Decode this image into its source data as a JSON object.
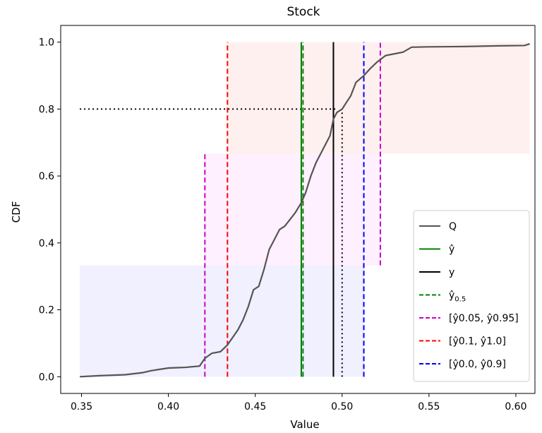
{
  "chart_data": {
    "type": "line",
    "title": "Stock",
    "xlabel": "Value",
    "ylabel": "CDF",
    "xlim": [
      0.338,
      0.611
    ],
    "ylim": [
      -0.05,
      1.05
    ],
    "xticks": [
      "0.35",
      "0.40",
      "0.45",
      "0.50",
      "0.55",
      "0.60"
    ],
    "xtick_values": [
      0.35,
      0.4,
      0.45,
      0.5,
      0.55,
      0.6
    ],
    "yticks": [
      "0.0",
      "0.2",
      "0.4",
      "0.6",
      "0.8",
      "1.0"
    ],
    "ytick_values": [
      0.0,
      0.2,
      0.4,
      0.6,
      0.8,
      1.0
    ],
    "grid": false,
    "legend_position": "lower right",
    "shaded_regions": [
      {
        "x": [
          0.349,
          0.5125
        ],
        "y": [
          0.0,
          0.333
        ],
        "color": "#0000ff",
        "opacity": 0.06
      },
      {
        "x": [
          0.421,
          0.522
        ],
        "y": [
          0.333,
          0.667
        ],
        "color": "#ff00ff",
        "opacity": 0.06
      },
      {
        "x": [
          0.434,
          0.608
        ],
        "y": [
          0.667,
          1.0
        ],
        "color": "#ff0000",
        "opacity": 0.06
      }
    ],
    "cdf_curve": {
      "name": "Q",
      "color": "#555555",
      "x": [
        0.349,
        0.36,
        0.375,
        0.385,
        0.39,
        0.395,
        0.4,
        0.41,
        0.418,
        0.421,
        0.425,
        0.43,
        0.434,
        0.436,
        0.44,
        0.443,
        0.446,
        0.449,
        0.452,
        0.455,
        0.458,
        0.461,
        0.464,
        0.467,
        0.47,
        0.473,
        0.4765,
        0.479,
        0.482,
        0.485,
        0.488,
        0.491,
        0.493,
        0.495,
        0.497,
        0.5,
        0.5025,
        0.505,
        0.508,
        0.5125,
        0.516,
        0.52,
        0.525,
        0.53,
        0.535,
        0.54,
        0.55,
        0.57,
        0.59,
        0.605,
        0.608
      ],
      "y": [
        0.0,
        0.003,
        0.006,
        0.012,
        0.018,
        0.022,
        0.026,
        0.028,
        0.032,
        0.055,
        0.07,
        0.075,
        0.095,
        0.11,
        0.14,
        0.17,
        0.21,
        0.26,
        0.27,
        0.32,
        0.38,
        0.41,
        0.44,
        0.45,
        0.47,
        0.49,
        0.52,
        0.55,
        0.6,
        0.64,
        0.67,
        0.7,
        0.72,
        0.77,
        0.79,
        0.8,
        0.82,
        0.84,
        0.88,
        0.9,
        0.92,
        0.94,
        0.96,
        0.965,
        0.97,
        0.985,
        0.986,
        0.987,
        0.989,
        0.99,
        0.995
      ]
    },
    "vertical_lines": [
      {
        "name": "ŷ",
        "x": 0.4765,
        "color": "#008000",
        "style": "solid"
      },
      {
        "name": "y",
        "x": 0.495,
        "color": "#000000",
        "style": "solid"
      },
      {
        "name": "ŷ0.5",
        "x": 0.4775,
        "color": "#008000",
        "style": "dashed"
      },
      {
        "name": "[ŷ0.05, ŷ0.95]",
        "x": [
          0.421,
          0.522
        ],
        "y_ranges": [
          [
            0.0,
            0.667
          ],
          [
            0.333,
            1.0
          ]
        ],
        "color": "#cc00cc",
        "style": "dashed"
      },
      {
        "name": "[ŷ0.1, ŷ1.0]",
        "x": [
          0.434,
          0.434
        ],
        "y_ranges": [
          [
            0.0,
            1.0
          ]
        ],
        "color": "#ff0000",
        "style": "dashed"
      },
      {
        "name": "[ŷ0.0, ŷ0.9]",
        "x": [
          0.5125
        ],
        "y_ranges": [
          [
            0.0,
            1.0
          ]
        ],
        "color": "#0000ff",
        "style": "dashed"
      }
    ],
    "reference_lines": {
      "horizontal": {
        "y": 0.8,
        "x_range": [
          0.349,
          0.497
        ]
      },
      "vertical": {
        "x": 0.5,
        "y_range": [
          0.0,
          0.8
        ]
      }
    },
    "legend": [
      {
        "label": "Q",
        "color": "#555555",
        "style": "solid"
      },
      {
        "label": "ŷ",
        "color": "#008000",
        "style": "solid"
      },
      {
        "label": "y",
        "color": "#000000",
        "style": "solid"
      },
      {
        "label": "ŷ",
        "sub": "0.5",
        "color": "#008000",
        "style": "dashed"
      },
      {
        "label": "[ŷ0.05, ŷ0.95]",
        "color": "#cc00cc",
        "style": "dashed"
      },
      {
        "label": "[ŷ0.1, ŷ1.0]",
        "color": "#ff0000",
        "style": "dashed"
      },
      {
        "label": "[ŷ0.0, ŷ0.9]",
        "color": "#0000ff",
        "style": "dashed"
      }
    ]
  }
}
